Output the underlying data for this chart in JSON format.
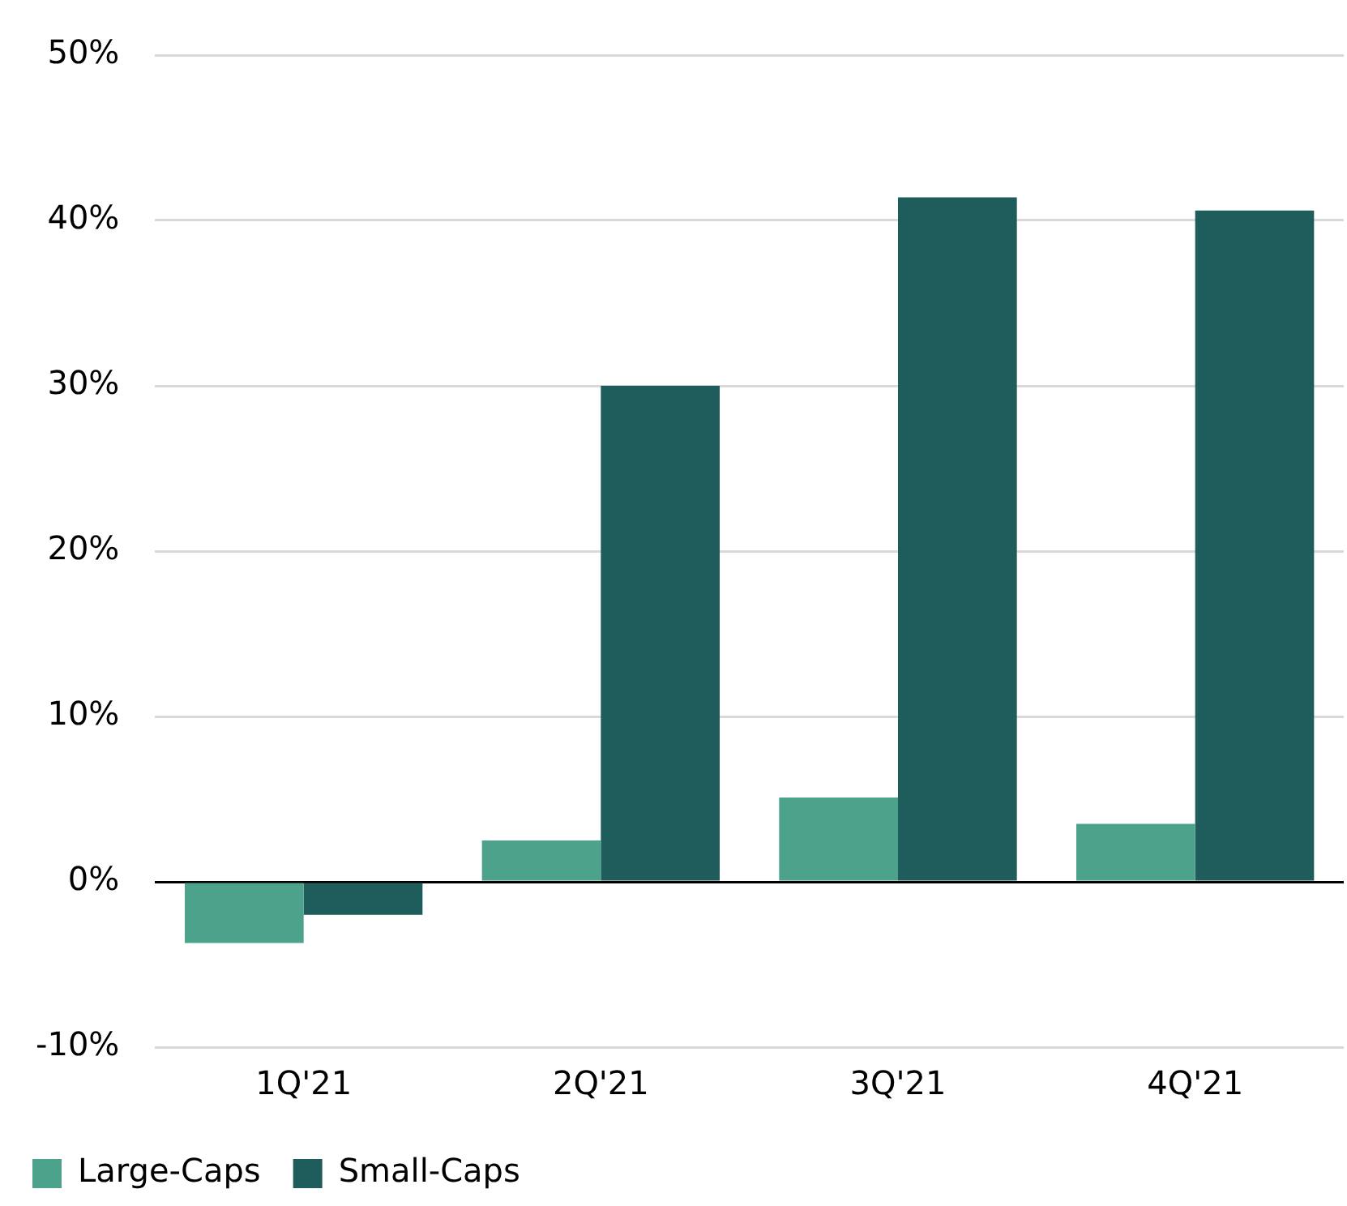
{
  "chart_data": {
    "type": "bar",
    "categories": [
      "1Q'21",
      "2Q'21",
      "3Q'21",
      "4Q'21"
    ],
    "series": [
      {
        "name": "Large-Caps",
        "color": "#4da28c",
        "values": [
          -3.7,
          2.5,
          5.1,
          3.5
        ]
      },
      {
        "name": "Small-Caps",
        "color": "#1e5d5b",
        "values": [
          -2.0,
          30.0,
          41.4,
          40.6
        ]
      }
    ],
    "ylim": [
      -10,
      50
    ],
    "yticks": [
      {
        "value": -10,
        "label": "-10%"
      },
      {
        "value": 0,
        "label": "0%"
      },
      {
        "value": 10,
        "label": "10%"
      },
      {
        "value": 20,
        "label": "20%"
      },
      {
        "value": 30,
        "label": "30%"
      },
      {
        "value": 40,
        "label": "40%"
      },
      {
        "value": 50,
        "label": "50%"
      }
    ],
    "grid": "y",
    "legend": "bottom left"
  }
}
